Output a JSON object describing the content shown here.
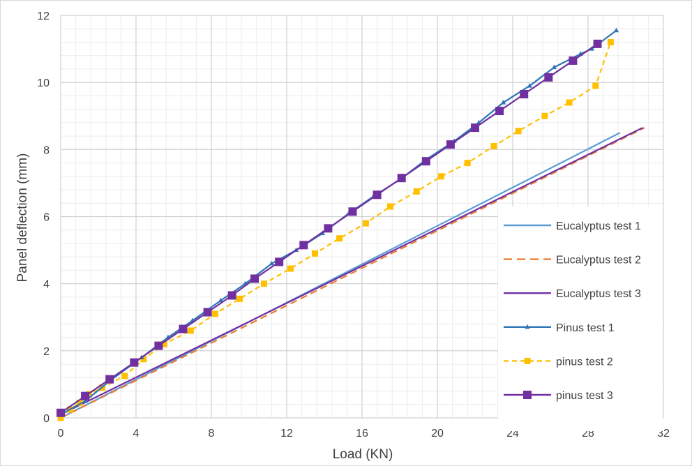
{
  "chart_data": {
    "type": "line",
    "title": "",
    "xlabel": "Load (KN)",
    "ylabel": "Panel deflection (mm)",
    "xlim": [
      0,
      32
    ],
    "ylim": [
      0,
      12
    ],
    "x_ticks": [
      "0",
      "4",
      "8",
      "12",
      "16",
      "20",
      "24",
      "28",
      "32"
    ],
    "y_ticks": [
      "0",
      "2",
      "4",
      "6",
      "8",
      "10",
      "12"
    ],
    "grid": true,
    "minor_grid": true,
    "legend_position": "bottom-right",
    "series": [
      {
        "name": "Eucalyptus test 1",
        "color": "#5b9bd5",
        "style": "solid",
        "marker": "none",
        "x": [
          0,
          29.7
        ],
        "y": [
          0,
          8.5
        ]
      },
      {
        "name": "Eucalyptus test 2",
        "color": "#ed7d31",
        "style": "dashed",
        "marker": "none",
        "x": [
          0,
          31.0
        ],
        "y": [
          0,
          8.65
        ]
      },
      {
        "name": "Eucalyptus test 3",
        "color": "#7030a0",
        "style": "solid",
        "marker": "none",
        "x": [
          0,
          30.9
        ],
        "y": [
          0.1,
          8.65
        ]
      },
      {
        "name": "Pinus test 1",
        "color": "#2e75b6",
        "style": "solid",
        "marker": "triangle",
        "x": [
          0,
          1.3,
          2.6,
          4.3,
          5.7,
          7.0,
          8.5,
          9.8,
          11.2,
          12.5,
          13.9,
          15.3,
          16.6,
          18.0,
          19.4,
          20.9,
          22.2,
          23.5,
          24.9,
          26.2,
          27.6,
          28.2,
          29.5
        ],
        "y": [
          0.1,
          0.5,
          1.1,
          1.8,
          2.4,
          2.9,
          3.5,
          4.0,
          4.6,
          5.0,
          5.5,
          6.1,
          6.6,
          7.1,
          7.7,
          8.25,
          8.8,
          9.4,
          9.9,
          10.45,
          10.85,
          11.0,
          11.55
        ]
      },
      {
        "name": "pinus test 2",
        "color": "#ffc000",
        "style": "dashed",
        "marker": "square",
        "x": [
          0,
          0.5,
          1.0,
          1.5,
          2.2,
          3.4,
          4.4,
          5.5,
          6.9,
          8.2,
          9.5,
          10.8,
          12.2,
          13.5,
          14.8,
          16.2,
          17.5,
          18.9,
          20.2,
          21.6,
          23.0,
          24.3,
          25.7,
          27.0,
          28.4,
          29.2
        ],
        "y": [
          0,
          0.25,
          0.45,
          0.7,
          0.9,
          1.25,
          1.75,
          2.2,
          2.6,
          3.1,
          3.55,
          4.0,
          4.45,
          4.9,
          5.35,
          5.8,
          6.3,
          6.75,
          7.2,
          7.6,
          8.1,
          8.55,
          9.0,
          9.4,
          9.9,
          11.2
        ]
      },
      {
        "name": "pinus test 3",
        "color": "#7030a0",
        "style": "solid",
        "marker": "square",
        "x": [
          0,
          1.3,
          2.6,
          3.9,
          5.2,
          6.5,
          7.8,
          9.1,
          10.3,
          11.6,
          12.9,
          14.2,
          15.5,
          16.8,
          18.1,
          19.4,
          20.7,
          22.0,
          23.3,
          24.6,
          25.9,
          27.2,
          28.5
        ],
        "y": [
          0.15,
          0.65,
          1.15,
          1.65,
          2.15,
          2.65,
          3.15,
          3.65,
          4.15,
          4.65,
          5.15,
          5.65,
          6.15,
          6.65,
          7.15,
          7.65,
          8.15,
          8.65,
          9.15,
          9.65,
          10.15,
          10.65,
          11.15
        ]
      }
    ]
  }
}
